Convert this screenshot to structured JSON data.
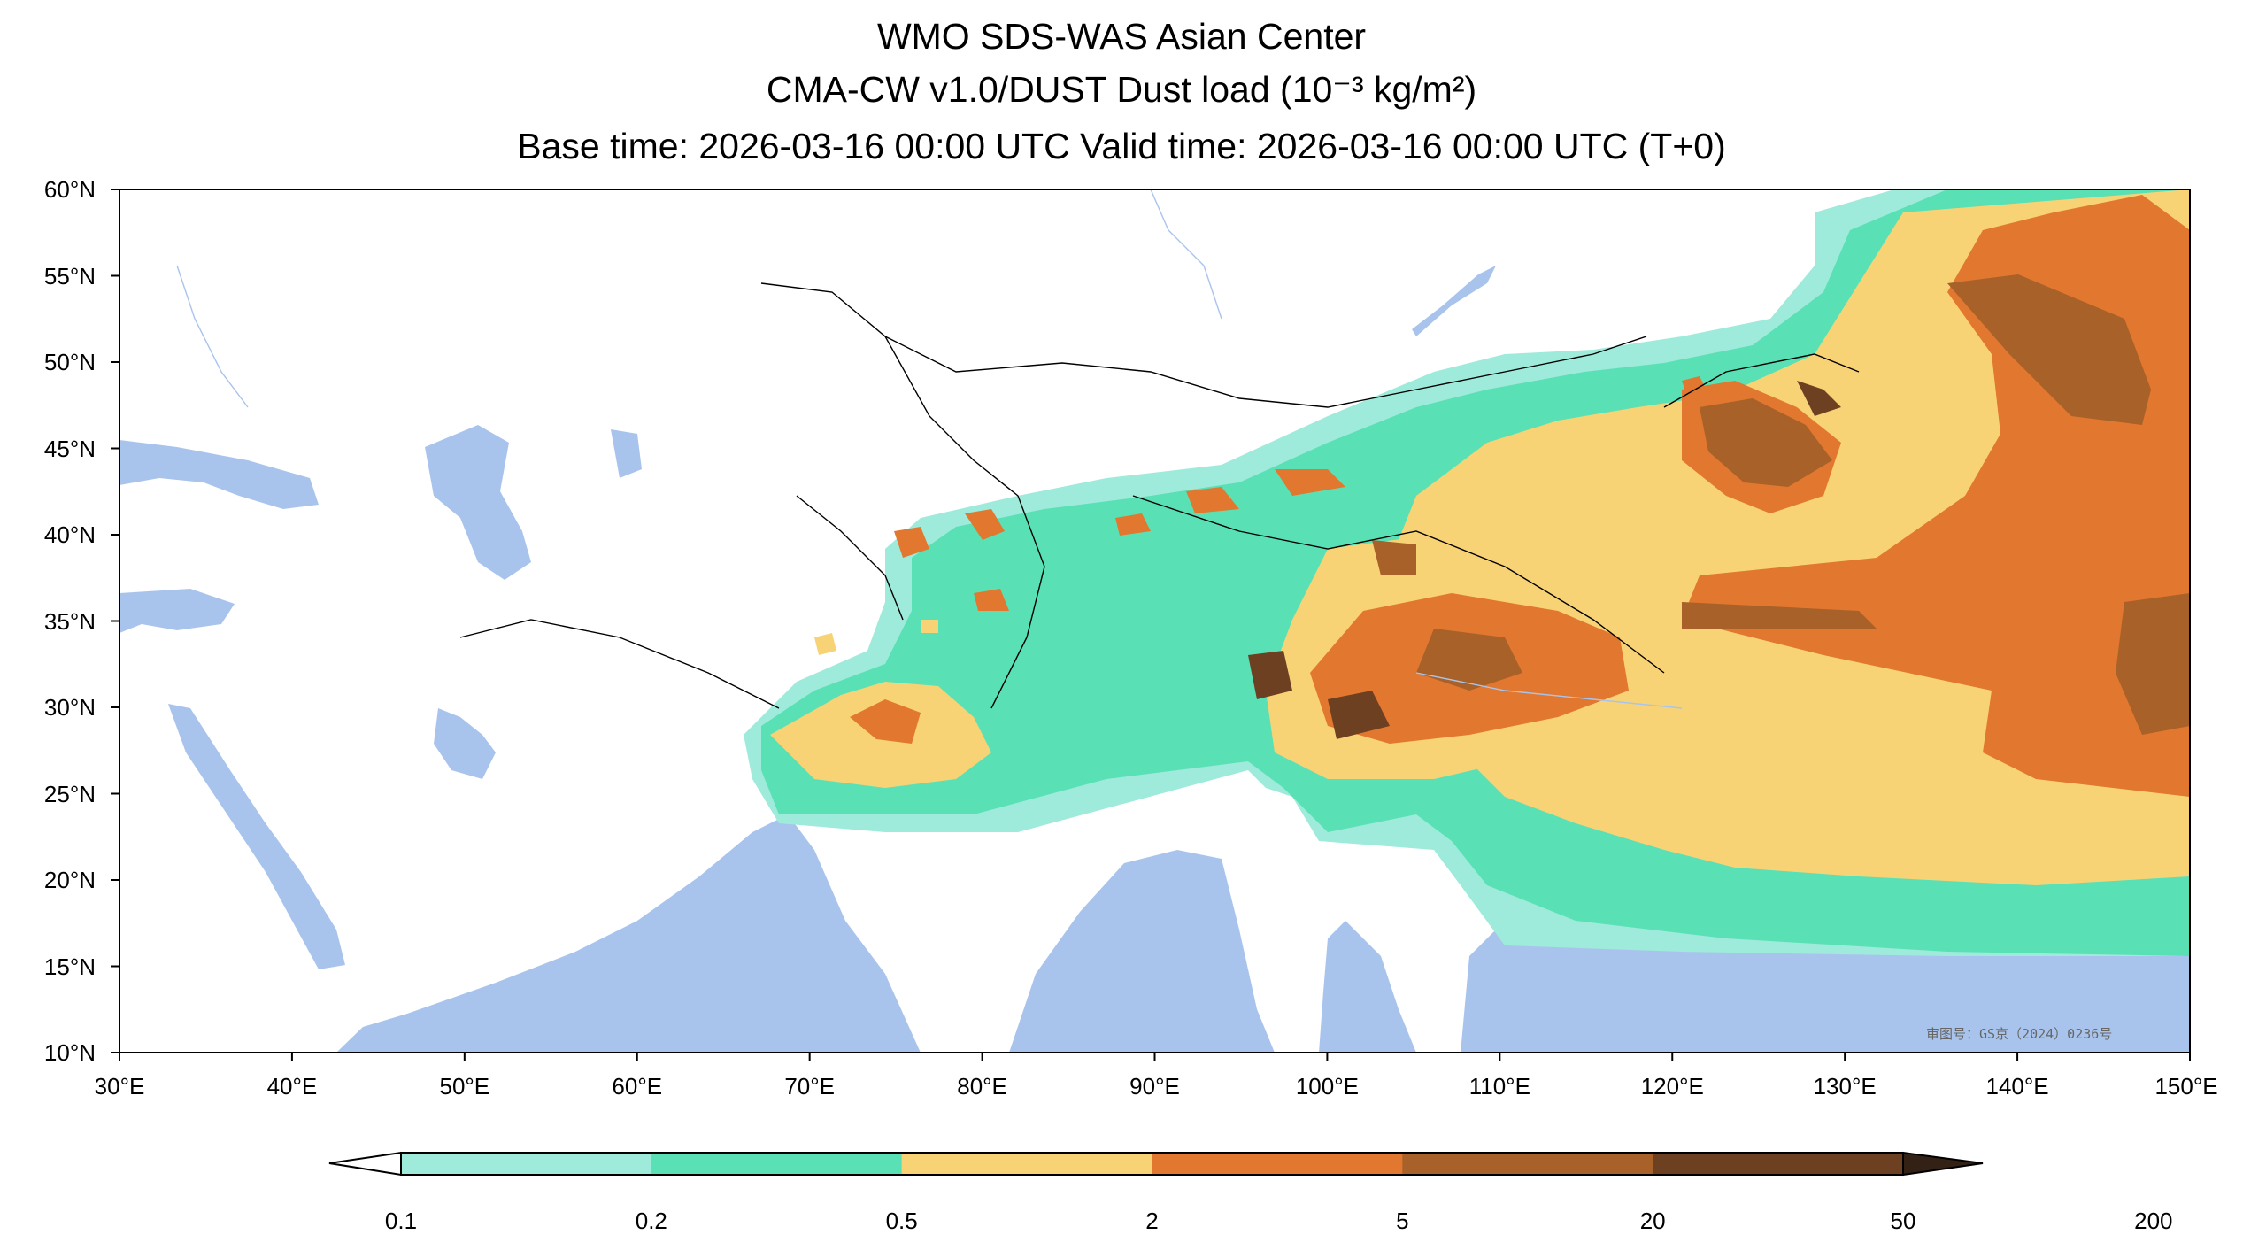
{
  "titles": {
    "line1": "WMO SDS-WAS Asian Center",
    "line2": "CMA-CW v1.0/DUST Dust load (10⁻³ kg/m²)",
    "line3": "Base time: 2026-03-16 00:00 UTC Valid time: 2026-03-16 00:00 UTC (T+0)"
  },
  "map": {
    "lon_range": [
      30,
      150
    ],
    "lat_range": [
      10,
      60
    ],
    "lat_ticks": [
      "60°N",
      "55°N",
      "50°N",
      "45°N",
      "40°N",
      "35°N",
      "30°N",
      "25°N",
      "20°N",
      "15°N",
      "10°N"
    ],
    "lon_ticks": [
      "30°E",
      "40°E",
      "50°E",
      "60°E",
      "70°E",
      "80°E",
      "90°E",
      "100°E",
      "110°E",
      "120°E",
      "130°E",
      "140°E",
      "150°E"
    ],
    "ocean_color": "#a9c4ec",
    "land_color": "#ffffff",
    "review_number": "审图号：GS京（2024）0236号"
  },
  "colorbar": {
    "levels": [
      "0.1",
      "0.2",
      "0.5",
      "2",
      "5",
      "20",
      "50",
      "200"
    ],
    "colors": [
      "#9eeadb",
      "#5ae0b5",
      "#f8d376",
      "#e2772f",
      "#a86128",
      "#6d4021",
      "#342116"
    ],
    "extend": "both"
  }
}
